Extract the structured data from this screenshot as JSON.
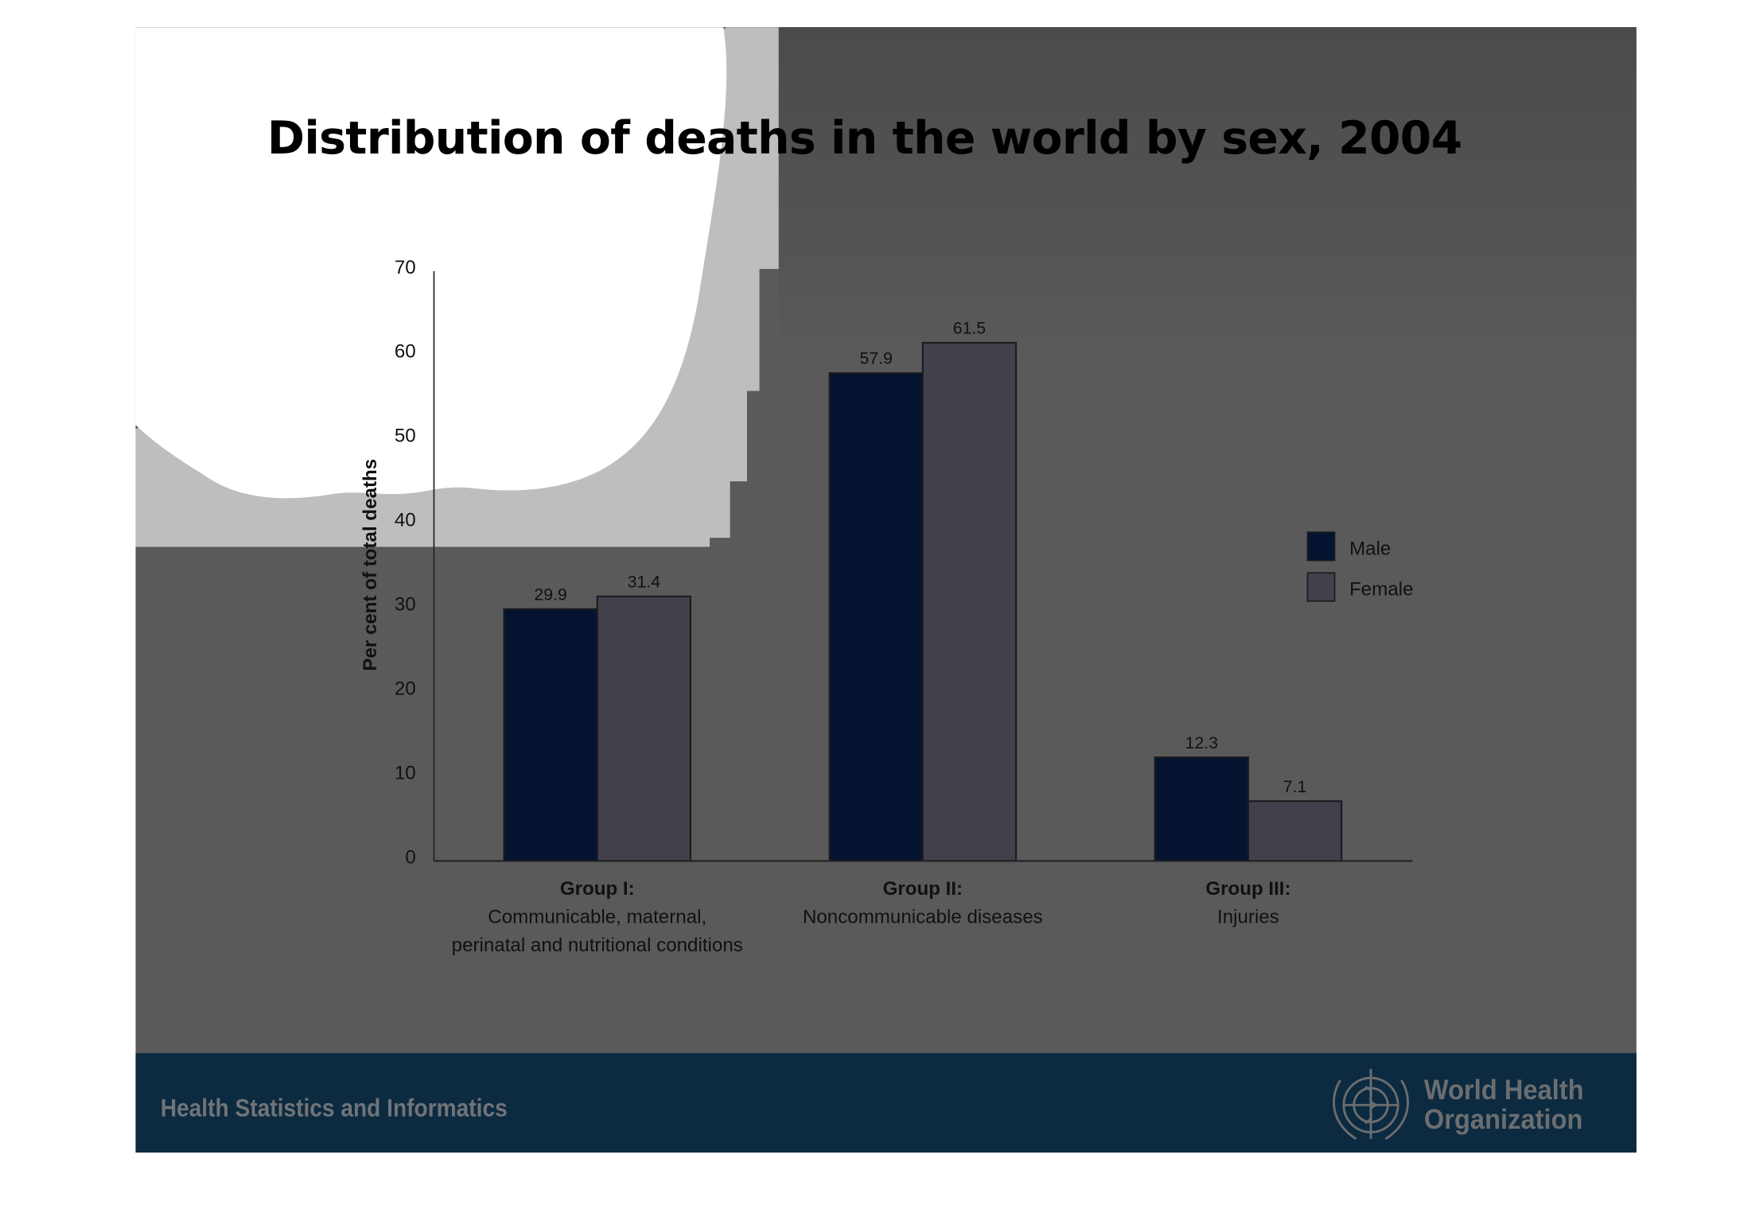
{
  "title": "Distribution of deaths in the world by sex, 2004",
  "footer": {
    "left_text": "Health Statistics and Informatics",
    "logo_line1": "World Health",
    "logo_line2": "Organization"
  },
  "colors": {
    "male": "#041330",
    "female": "#42414b",
    "background": "#5a5a5a",
    "footer": "#0c2a40"
  },
  "chart_data": {
    "type": "bar",
    "title": "Distribution of deaths in the world by sex, 2004",
    "ylabel": "Per cent of total deaths",
    "xlabel": "",
    "ylim": [
      0,
      70
    ],
    "yticks": [
      "0",
      "10",
      "20",
      "30",
      "40",
      "50",
      "60",
      "70"
    ],
    "categories": [
      {
        "title": "Group I:",
        "lines": [
          "Communicable, maternal,",
          "perinatal and nutritional conditions"
        ]
      },
      {
        "title": "Group II:",
        "lines": [
          "Noncommunicable diseases"
        ]
      },
      {
        "title": "Group III:",
        "lines": [
          "Injuries"
        ]
      }
    ],
    "series": [
      {
        "name": "Male",
        "color": "#041330",
        "values": [
          29.9,
          57.9,
          12.3
        ],
        "labels": [
          "29.9",
          "57.9",
          "12.3"
        ]
      },
      {
        "name": "Female",
        "color": "#42414b",
        "values": [
          31.4,
          61.5,
          7.1
        ],
        "labels": [
          "31.4",
          "61.5",
          "7.1"
        ]
      }
    ],
    "legend": "right",
    "grid": false
  }
}
